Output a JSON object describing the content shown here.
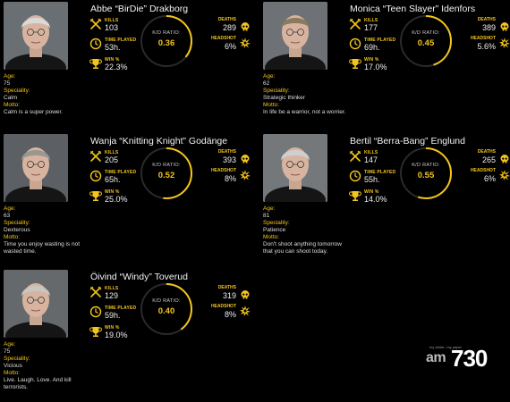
{
  "labels": {
    "kills": "KILLS",
    "time_played": "TIME PLAYED",
    "win_pct": "WIN %",
    "kd_ratio": "K/D RATIO:",
    "deaths": "DEATHS",
    "headshot": "HEADSHOT",
    "age": "Age:",
    "speciality": "Speciality:",
    "motto": "Motto:"
  },
  "colors": {
    "accent": "#f3c51c",
    "background": "#000000",
    "text": "#ffffff"
  },
  "players": [
    {
      "name": "Abbe “BirDie” Drakborg",
      "kills": "103",
      "time_played": "53h.",
      "win_pct": "22.3%",
      "kd_ratio": "0.36",
      "kd_value": 0.36,
      "deaths": "289",
      "headshot": "6%",
      "age": "75",
      "speciality": "Calm",
      "motto": "Calm is a super power."
    },
    {
      "name": "Monica “Teen Slayer” Idenfors",
      "kills": "177",
      "time_played": "69h.",
      "win_pct": "17.0%",
      "kd_ratio": "0.45",
      "kd_value": 0.45,
      "deaths": "389",
      "headshot": "5.6%",
      "age": "62",
      "speciality": "Strategic thinker",
      "motto": "In life be a warrior, not a worrier."
    },
    {
      "name": "Wanja “Knitting Knight” Godänge",
      "kills": "205",
      "time_played": "65h.",
      "win_pct": "25.0%",
      "kd_ratio": "0.52",
      "kd_value": 0.52,
      "deaths": "393",
      "headshot": "8%",
      "age": "63",
      "speciality": "Dexterous",
      "motto": "Time you enjoy wasting is not wasted time."
    },
    {
      "name": "Bertil “Berra-Bang” Englund",
      "kills": "147",
      "time_played": "55h.",
      "win_pct": "14.0%",
      "kd_ratio": "0.55",
      "kd_value": 0.55,
      "deaths": "265",
      "headshot": "6%",
      "age": "81",
      "speciality": "Patience",
      "motto": "Don't shoot anything tomorrow that you can shoot today."
    },
    {
      "name": "Öivind “Windy” Toverud",
      "kills": "129",
      "time_played": "59h.",
      "win_pct": "19.0%",
      "kd_ratio": "0.40",
      "kd_value": 0.4,
      "deaths": "319",
      "headshot": "8%",
      "age": "75",
      "speciality": "Vicious",
      "motto": "Live. Laugh. Love. And kill terrorists."
    }
  ],
  "watermark": {
    "tagline": "my dollar...my paper",
    "brand_am": "am",
    "brand_num": "730"
  }
}
